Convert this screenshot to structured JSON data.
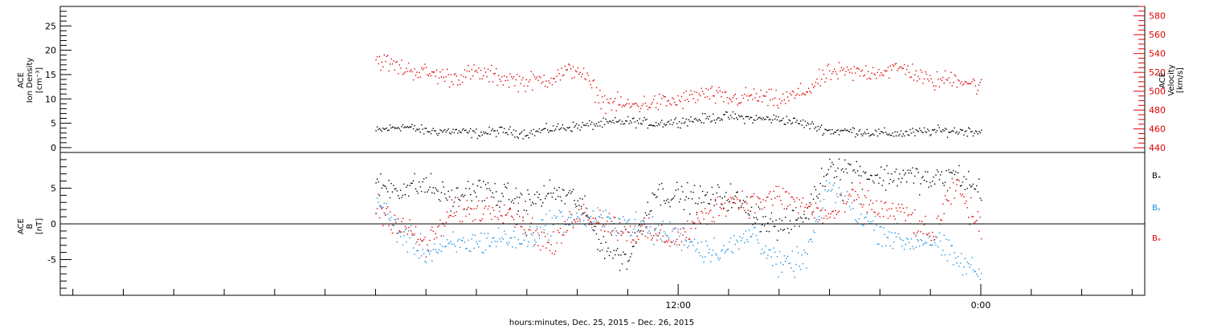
{
  "chart_data": [
    {
      "type": "scatter",
      "panel": "top",
      "ylabel_left": [
        "ACE",
        "Ion Density",
        "[cm⁻³]"
      ],
      "ylabel_right": [
        "ACE",
        "Velocity",
        "[km/s]"
      ],
      "ylim_left": [
        -1,
        29
      ],
      "ylim_right": [
        435,
        590
      ],
      "yticks_left": [
        "0",
        "5",
        "10",
        "15",
        "20",
        "25"
      ],
      "yticks_right": [
        "440",
        "460",
        "480",
        "500",
        "520",
        "540",
        "560",
        "580"
      ],
      "colors": {
        "density": "#000000",
        "velocity": "#e00000"
      },
      "series": [
        {
          "axis": "left",
          "hours": [
            0,
            1,
            2,
            3,
            4,
            5,
            6,
            7,
            8,
            9,
            10,
            11,
            12,
            13,
            14,
            15,
            16,
            17,
            18,
            19,
            20,
            21,
            22,
            23,
            24
          ],
          "values": [
            3.5,
            4.5,
            3.5,
            3.5,
            3.0,
            3.5,
            3.0,
            4.0,
            4.5,
            5.0,
            5.5,
            5.0,
            5.5,
            6.0,
            6.5,
            6.0,
            6.0,
            5.0,
            3.5,
            3.5,
            3.0,
            3.0,
            3.5,
            3.5,
            3.5
          ]
        },
        {
          "axis": "right",
          "hours": [
            0,
            1,
            2,
            3,
            4,
            5,
            6,
            7,
            8,
            9,
            10,
            11,
            12,
            13,
            14,
            15,
            16,
            17,
            18,
            19,
            20,
            21,
            22,
            23,
            24
          ],
          "values": [
            535,
            525,
            520,
            515,
            520,
            515,
            510,
            515,
            525,
            490,
            485,
            488,
            490,
            498,
            492,
            495,
            490,
            500,
            520,
            520,
            522,
            525,
            510,
            515,
            505
          ]
        }
      ]
    },
    {
      "type": "scatter",
      "panel": "bottom",
      "ylabel": [
        "ACE",
        "B",
        "[nT]"
      ],
      "ylim": [
        -10,
        10
      ],
      "yticks": [
        "-5",
        "0",
        "5"
      ],
      "zero_line": true,
      "legend": [
        "Bₓ",
        "Bᵧ",
        "Bₔ"
      ],
      "legend_colors": [
        "#000000",
        "#1a8fe0",
        "#e00000"
      ],
      "series": [
        {
          "hours": [
            0,
            1,
            2,
            3,
            4,
            5,
            6,
            7,
            8,
            9,
            10,
            11,
            12,
            13,
            14,
            15,
            16,
            17,
            18,
            19,
            20,
            21,
            22,
            23,
            24
          ],
          "values": [
            5.5,
            5.0,
            5.5,
            3.5,
            5.0,
            4.0,
            3.0,
            4.5,
            3.5,
            -3.0,
            -5.0,
            4.5,
            4.0,
            3.5,
            4.0,
            1.5,
            -0.5,
            1.0,
            8.5,
            7.5,
            6.5,
            7.0,
            6.0,
            7.0,
            4.5
          ]
        },
        {
          "hours": [
            0,
            1,
            2,
            3,
            4,
            5,
            6,
            7,
            8,
            9,
            10,
            11,
            12,
            13,
            14,
            15,
            16,
            17,
            18,
            19,
            20,
            21,
            22,
            23,
            24
          ],
          "values": [
            3.5,
            -1.5,
            -4.0,
            -3.0,
            -2.5,
            -2.0,
            -2.0,
            0.5,
            1.0,
            0.5,
            0.0,
            -1.0,
            -1.5,
            -3.5,
            -3.5,
            -1.0,
            -6.0,
            -5.0,
            5.5,
            2.0,
            -1.0,
            -2.5,
            -2.0,
            -5.0,
            -7.0
          ]
        },
        {
          "hours": [
            0,
            1,
            2,
            3,
            4,
            5,
            6,
            7,
            8,
            9,
            10,
            11,
            12,
            13,
            14,
            15,
            16,
            17,
            18,
            19,
            20,
            21,
            22,
            23,
            24
          ],
          "values": [
            2.5,
            0.0,
            -3.0,
            1.5,
            2.0,
            2.5,
            0.0,
            -3.5,
            2.0,
            0.5,
            -1.0,
            -1.5,
            -2.0,
            1.0,
            3.5,
            3.0,
            4.0,
            2.5,
            1.0,
            4.0,
            2.0,
            1.5,
            -2.0,
            5.5,
            -1.0
          ]
        }
      ]
    },
    {
      "xlabel": "hours:minutes, Dec. 25, 2015 – Dec. 26, 2015",
      "xticks": [
        "12:00",
        "0:00"
      ],
      "xlim_hours": [
        -12.5,
        30.5
      ],
      "xtick_hours": [
        12,
        24
      ]
    }
  ]
}
